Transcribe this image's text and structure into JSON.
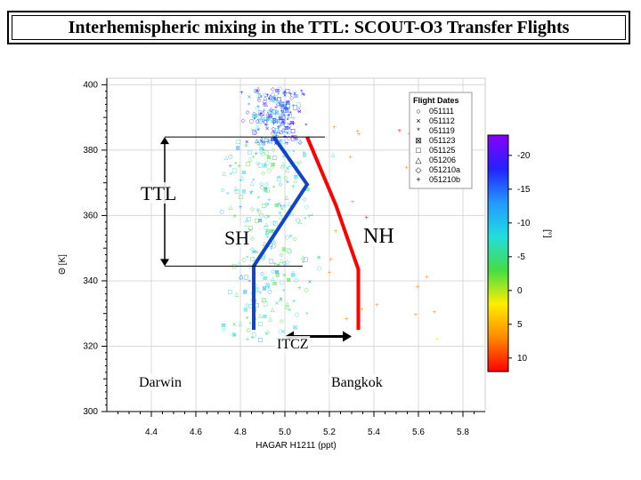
{
  "title": "Interhemispheric mixing in the TTL:  SCOUT-O3 Transfer Flights",
  "chart_data": {
    "type": "scatter",
    "xlabel": "HAGAR H1211 (ppt)",
    "ylabel": "Θ [K]",
    "xlim": [
      4.2,
      5.9
    ],
    "ylim": [
      300,
      402
    ],
    "xticks": [
      4.4,
      4.6,
      4.8,
      5.0,
      5.2,
      5.4,
      5.6,
      5.8
    ],
    "yticks": [
      300,
      320,
      340,
      360,
      380,
      400
    ],
    "grid": true,
    "legend": {
      "title": "Flight Dates",
      "position": "top-right",
      "entries": [
        {
          "symbol": "○",
          "label": "051111"
        },
        {
          "symbol": "×",
          "label": "051112"
        },
        {
          "symbol": "*",
          "label": "051119"
        },
        {
          "symbol": "⊠",
          "label": "051123"
        },
        {
          "symbol": "□",
          "label": "051125"
        },
        {
          "symbol": "△",
          "label": "051206"
        },
        {
          "symbol": "◇",
          "label": "051210a"
        },
        {
          "symbol": "+",
          "label": "051210b"
        }
      ]
    },
    "colorbar": {
      "label": "[°]",
      "ticks": [
        -20,
        -15,
        -10,
        -5,
        0,
        5,
        10
      ],
      "range": [
        12,
        -23
      ],
      "colors": [
        "#ff0000",
        "#ff8800",
        "#ffee00",
        "#44dd44",
        "#22dddd",
        "#2299ff",
        "#2222ff",
        "#8800ff"
      ]
    },
    "sh_profile": {
      "name": "SH",
      "color": "#1144cc",
      "points": [
        [
          4.86,
          325
        ],
        [
          4.86,
          344.5
        ],
        [
          5.1,
          369.5
        ],
        [
          4.95,
          384
        ]
      ]
    },
    "nh_profile": {
      "name": "NH",
      "color": "#ff0000",
      "points": [
        [
          5.33,
          325
        ],
        [
          5.33,
          343.5
        ],
        [
          5.23,
          363
        ],
        [
          5.1,
          384
        ]
      ]
    },
    "ttl_bracket": {
      "label": "TTL",
      "top": 384,
      "bottom": 344.5
    },
    "itcz_arrow": {
      "label": "ITCZ",
      "x": [
        5.0,
        5.3
      ],
      "y": 323
    },
    "annotations": [
      "TTL",
      "SH",
      "NH",
      "ITCZ",
      "Darwin",
      "Bangkok"
    ]
  }
}
